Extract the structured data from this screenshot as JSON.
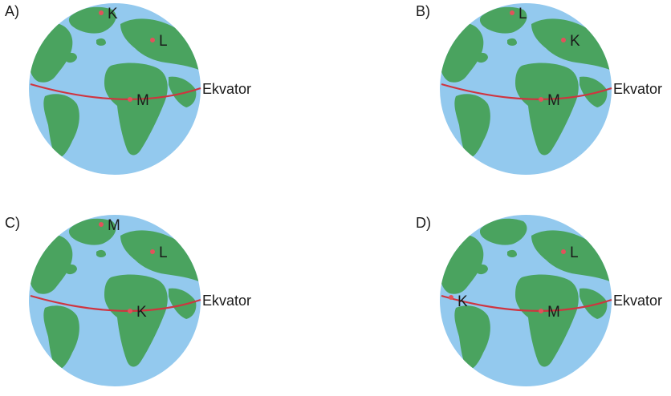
{
  "colors": {
    "ocean": "#93c9ee",
    "land": "#4aa35f",
    "equator": "#d0343f",
    "dot": "#e2525b"
  },
  "equator_label": "Ekvator",
  "options": [
    {
      "label": "A)",
      "top": "K",
      "right": "L",
      "center": "M",
      "left": ""
    },
    {
      "label": "B)",
      "top": "L",
      "right": "K",
      "center": "M",
      "left": ""
    },
    {
      "label": "C)",
      "top": "M",
      "right": "L",
      "center": "K",
      "left": ""
    },
    {
      "label": "D)",
      "top": "",
      "right": "L",
      "center": "M",
      "left": "K"
    }
  ]
}
